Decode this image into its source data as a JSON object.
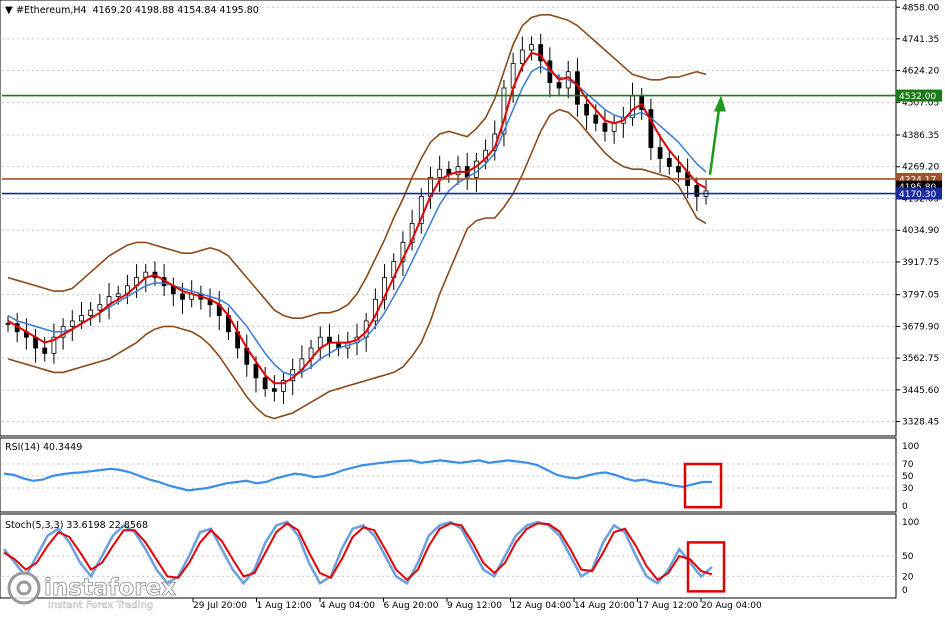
{
  "header": {
    "symbol": "#Ethereum,H4",
    "ohlc": "4169.20 4198.88 4154.84 4195.80"
  },
  "rsi_label": "RSI(14) 40.3449",
  "stoch_label": "Stoch(5,3,3) 33.6198 22.8568",
  "watermark": {
    "brand": "instaforex",
    "tagline": "Instant Forex Trading"
  },
  "colors": {
    "candle": "#000000",
    "ma_fast": "#e00000",
    "ma_slow": "#3a7bd5",
    "bollinger": "#8b4a1a",
    "support_line": "#1a7a1a",
    "resistance_line": "#a0522d",
    "price_line": "#1a2a9a",
    "rsi_line": "#3a8ee6",
    "stoch_main": "#6a9fe0",
    "stoch_signal": "#e00000",
    "highlight_box": "#e00000",
    "arrow": "#1a9a1a"
  },
  "chart_data": [
    {
      "type": "line",
      "panel": "price",
      "title": "#Ethereum,H4",
      "ylim": [
        3290,
        4870
      ],
      "y_ticks": [
        "4858.00",
        "4741.35",
        "4624.20",
        "4507.05",
        "4386.35",
        "4269.20",
        "4152.05",
        "4034.90",
        "3917.75",
        "3797.05",
        "3679.90",
        "3562.75",
        "3445.60",
        "3328.45"
      ],
      "x_ticks": [
        "29 Jul 20:00",
        "1 Aug 12:00",
        "4 Aug 04:00",
        "6 Aug 20:00",
        "9 Aug 12:00",
        "12 Aug 04:00",
        "14 Aug 20:00",
        "17 Aug 12:00",
        "20 Aug 04:00"
      ],
      "price_labels": [
        {
          "label": "4532.00",
          "value": 4532,
          "color": "#1a7a1a"
        },
        {
          "label": "4224.17",
          "value": 4224.17,
          "color": "#a0522d"
        },
        {
          "label": "4195.80",
          "value": 4195.8,
          "color": "#000000"
        },
        {
          "label": "4170.30",
          "value": 4170.3,
          "color": "#1a2a9a"
        }
      ],
      "series": [
        {
          "role": "close",
          "values": [
            3690,
            3660,
            3640,
            3600,
            3580,
            3640,
            3680,
            3700,
            3720,
            3740,
            3760,
            3790,
            3800,
            3830,
            3860,
            3880,
            3860,
            3830,
            3800,
            3780,
            3800,
            3780,
            3760,
            3720,
            3660,
            3600,
            3540,
            3490,
            3450,
            3440,
            3480,
            3520,
            3560,
            3600,
            3640,
            3620,
            3600,
            3620,
            3640,
            3700,
            3780,
            3860,
            3920,
            3990,
            4060,
            4160,
            4230,
            4260,
            4240,
            4270,
            4230,
            4290,
            4330,
            4390,
            4560,
            4650,
            4700,
            4720,
            4660,
            4580,
            4560,
            4620,
            4500,
            4460,
            4430,
            4400,
            4430,
            4450,
            4530,
            4480,
            4340,
            4300,
            4270,
            4250,
            4200,
            4160,
            4180
          ]
        },
        {
          "role": "ma_fast",
          "values": [
            3700,
            3680,
            3660,
            3640,
            3620,
            3630,
            3650,
            3670,
            3690,
            3710,
            3730,
            3760,
            3780,
            3800,
            3830,
            3860,
            3870,
            3850,
            3830,
            3810,
            3800,
            3790,
            3780,
            3760,
            3720,
            3660,
            3600,
            3550,
            3500,
            3470,
            3470,
            3490,
            3520,
            3560,
            3600,
            3620,
            3620,
            3620,
            3630,
            3660,
            3720,
            3790,
            3860,
            3930,
            4000,
            4080,
            4160,
            4220,
            4240,
            4250,
            4250,
            4270,
            4300,
            4340,
            4440,
            4560,
            4640,
            4690,
            4680,
            4630,
            4590,
            4600,
            4570,
            4520,
            4480,
            4440,
            4430,
            4440,
            4480,
            4500,
            4440,
            4380,
            4330,
            4290,
            4250,
            4210,
            4190
          ]
        },
        {
          "role": "ma_slow",
          "values": [
            3720,
            3700,
            3690,
            3680,
            3670,
            3660,
            3660,
            3670,
            3690,
            3710,
            3730,
            3750,
            3770,
            3790,
            3810,
            3830,
            3840,
            3840,
            3830,
            3820,
            3810,
            3800,
            3790,
            3780,
            3760,
            3720,
            3680,
            3630,
            3580,
            3540,
            3510,
            3500,
            3510,
            3530,
            3560,
            3580,
            3600,
            3610,
            3620,
            3640,
            3680,
            3730,
            3790,
            3850,
            3920,
            3990,
            4060,
            4130,
            4180,
            4210,
            4230,
            4250,
            4280,
            4320,
            4400,
            4480,
            4560,
            4620,
            4640,
            4620,
            4600,
            4590,
            4570,
            4540,
            4510,
            4480,
            4460,
            4450,
            4460,
            4470,
            4450,
            4420,
            4390,
            4360,
            4320,
            4280,
            4250
          ]
        },
        {
          "role": "bb_upper",
          "values": [
            3860,
            3850,
            3840,
            3830,
            3820,
            3810,
            3810,
            3820,
            3850,
            3880,
            3910,
            3940,
            3960,
            3980,
            3990,
            3990,
            3980,
            3970,
            3960,
            3950,
            3950,
            3960,
            3970,
            3960,
            3940,
            3900,
            3860,
            3820,
            3780,
            3740,
            3720,
            3710,
            3710,
            3720,
            3730,
            3730,
            3740,
            3760,
            3800,
            3860,
            3930,
            4000,
            4080,
            4150,
            4230,
            4300,
            4360,
            4390,
            4400,
            4390,
            4380,
            4410,
            4450,
            4520,
            4620,
            4720,
            4790,
            4820,
            4830,
            4830,
            4820,
            4810,
            4790,
            4760,
            4730,
            4700,
            4670,
            4640,
            4610,
            4600,
            4590,
            4590,
            4600,
            4600,
            4610,
            4620,
            4610
          ]
        },
        {
          "role": "bb_lower",
          "values": [
            3560,
            3550,
            3540,
            3530,
            3520,
            3510,
            3510,
            3520,
            3530,
            3540,
            3550,
            3560,
            3580,
            3600,
            3620,
            3650,
            3670,
            3680,
            3680,
            3670,
            3660,
            3640,
            3610,
            3570,
            3520,
            3470,
            3420,
            3380,
            3350,
            3340,
            3350,
            3360,
            3380,
            3400,
            3420,
            3440,
            3450,
            3460,
            3470,
            3480,
            3490,
            3500,
            3510,
            3530,
            3570,
            3620,
            3700,
            3800,
            3880,
            3960,
            4040,
            4070,
            4080,
            4080,
            4120,
            4170,
            4240,
            4320,
            4400,
            4460,
            4480,
            4470,
            4440,
            4400,
            4360,
            4320,
            4290,
            4270,
            4260,
            4260,
            4250,
            4240,
            4230,
            4200,
            4140,
            4080,
            4060
          ]
        }
      ]
    },
    {
      "type": "line",
      "panel": "rsi",
      "title": "RSI(14) 40.3449",
      "ylim": [
        0,
        100
      ],
      "y_ticks": [
        "100",
        "70",
        "50",
        "30",
        "0"
      ],
      "series": [
        {
          "role": "rsi",
          "values": [
            54,
            52,
            46,
            42,
            44,
            50,
            53,
            55,
            56,
            58,
            60,
            62,
            60,
            56,
            50,
            44,
            40,
            34,
            30,
            26,
            28,
            30,
            34,
            38,
            40,
            42,
            38,
            40,
            46,
            50,
            54,
            52,
            48,
            50,
            54,
            60,
            64,
            68,
            70,
            72,
            74,
            75,
            76,
            72,
            74,
            76,
            74,
            72,
            74,
            76,
            72,
            74,
            76,
            74,
            72,
            68,
            60,
            52,
            48,
            46,
            50,
            54,
            56,
            52,
            46,
            42,
            44,
            40,
            38,
            34,
            32,
            36,
            40,
            40
          ]
        }
      ]
    },
    {
      "type": "line",
      "panel": "stoch",
      "title": "Stoch(5,3,3) 33.6198 22.8568",
      "ylim": [
        0,
        100
      ],
      "y_ticks": [
        "100",
        "50",
        "20",
        "0"
      ],
      "series": [
        {
          "role": "main",
          "values": [
            60,
            40,
            20,
            50,
            80,
            90,
            70,
            40,
            20,
            50,
            80,
            95,
            85,
            60,
            30,
            10,
            20,
            50,
            85,
            90,
            60,
            30,
            10,
            30,
            70,
            95,
            100,
            80,
            40,
            10,
            20,
            60,
            90,
            95,
            80,
            50,
            20,
            10,
            40,
            80,
            95,
            100,
            90,
            60,
            30,
            20,
            50,
            80,
            95,
            100,
            95,
            80,
            50,
            20,
            30,
            70,
            95,
            85,
            50,
            20,
            10,
            30,
            60,
            40,
            20,
            34
          ]
        },
        {
          "role": "signal",
          "values": [
            55,
            45,
            30,
            40,
            65,
            85,
            78,
            55,
            30,
            40,
            65,
            88,
            88,
            70,
            45,
            20,
            18,
            40,
            70,
            88,
            72,
            45,
            20,
            25,
            55,
            85,
            98,
            88,
            55,
            25,
            18,
            45,
            78,
            92,
            88,
            60,
            30,
            15,
            30,
            65,
            90,
            98,
            95,
            70,
            40,
            25,
            40,
            70,
            90,
            98,
            97,
            86,
            60,
            30,
            28,
            55,
            85,
            90,
            65,
            35,
            15,
            25,
            50,
            45,
            28,
            23
          ]
        }
      ]
    }
  ]
}
